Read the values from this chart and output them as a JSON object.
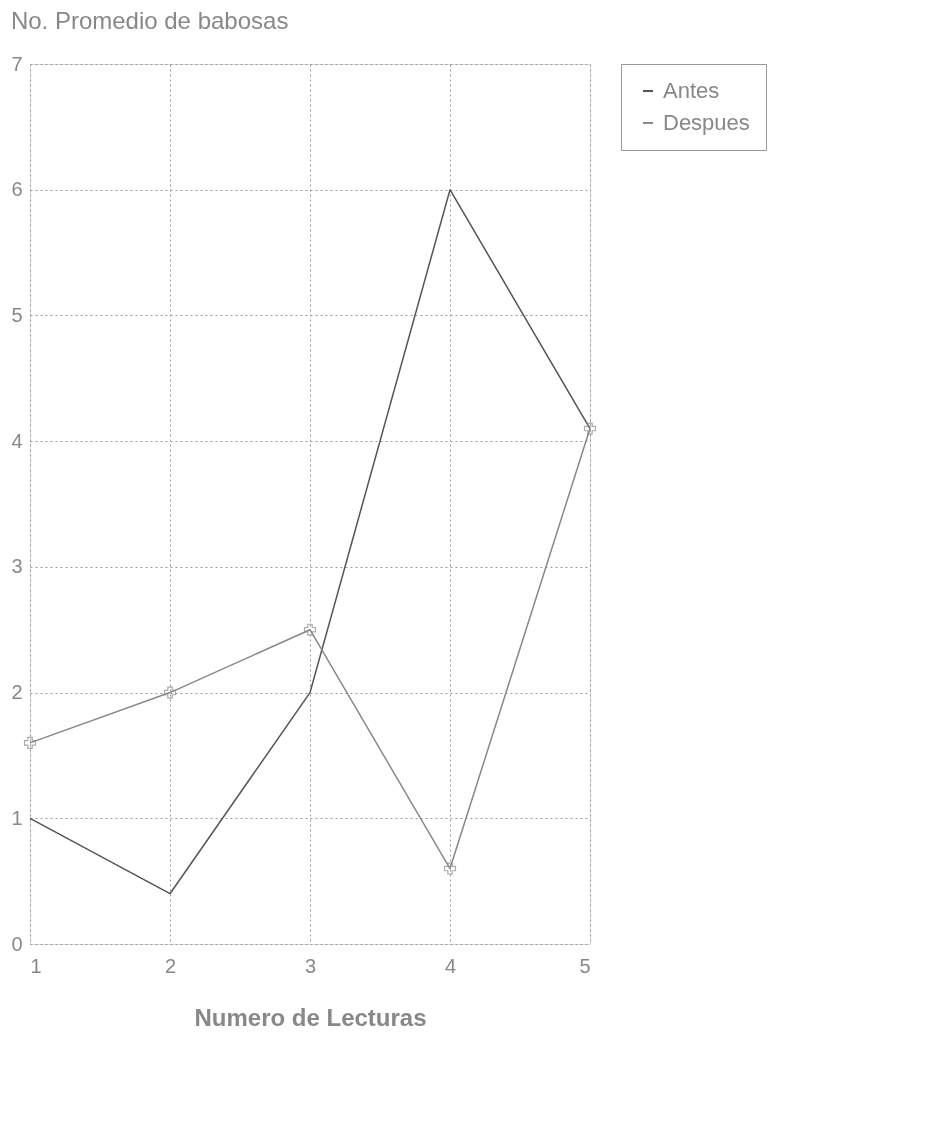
{
  "chart_data": {
    "type": "line",
    "ylabel": "No. Promedio de babosas",
    "xlabel": "Numero de Lecturas",
    "x": [
      1,
      2,
      3,
      4,
      5
    ],
    "series": [
      {
        "name": "Antes",
        "color": "#555555",
        "values": [
          1.0,
          0.4,
          2.0,
          6.0,
          4.1
        ],
        "marker": "none"
      },
      {
        "name": "Despues",
        "color": "#888888",
        "values": [
          1.6,
          2.0,
          2.5,
          0.6,
          4.1
        ],
        "marker": "cross"
      }
    ],
    "xlim": [
      1,
      5
    ],
    "xticks": [
      1,
      2,
      3,
      4,
      5
    ],
    "ylim": [
      0,
      7
    ],
    "yticks": [
      0,
      1,
      2,
      3,
      4,
      5,
      6,
      7
    ],
    "grid": true,
    "legend": "right",
    "line_style": "solid"
  }
}
